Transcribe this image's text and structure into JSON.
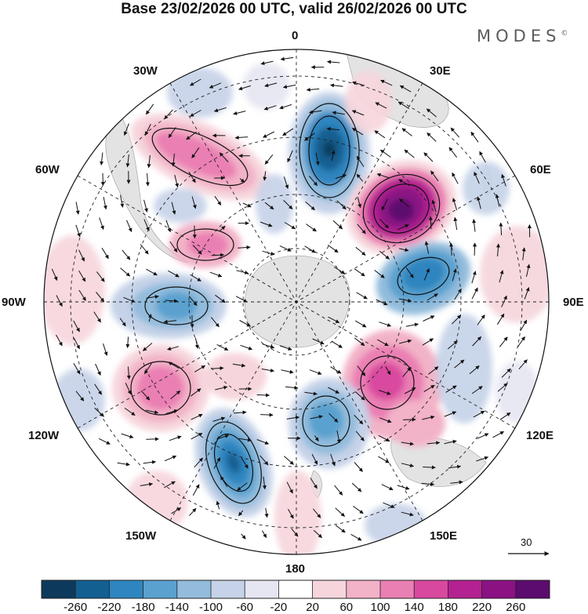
{
  "header": {
    "title": "Base 23/02/2026 00 UTC, valid 26/02/2026 00 UTC",
    "brand": "MODES",
    "brand_mark": "©"
  },
  "map": {
    "projection": "south-polar-stereographic",
    "longitude_labels": {
      "lon_0": "0",
      "lon_30e": "30E",
      "lon_60e": "60E",
      "lon_90e": "90E",
      "lon_120e": "120E",
      "lon_150e": "150E",
      "lon_180": "180",
      "lon_150w": "150W",
      "lon_120w": "120W",
      "lon_90w": "90W",
      "lon_60w": "60W",
      "lon_30w": "30W"
    },
    "reference_vector": {
      "value": "30"
    }
  },
  "colorbar": {
    "labels": [
      "-260",
      "-220",
      "-180",
      "-140",
      "-100",
      "-60",
      "-20",
      "20",
      "60",
      "100",
      "140",
      "180",
      "220",
      "260"
    ],
    "colors": [
      "#0d3a5c",
      "#135f91",
      "#2e85bf",
      "#5aa1cf",
      "#93bcdc",
      "#c5d2e8",
      "#e6e6f2",
      "#ffffff",
      "#f6d5dc",
      "#f2b2c7",
      "#ea7fb3",
      "#d9489f",
      "#b42190",
      "#8a1283",
      "#5c0b6e"
    ]
  },
  "anomalies": [
    {
      "name": "anomaly-neg-0e",
      "sign": "negative",
      "magnitude": 220
    },
    {
      "name": "anomaly-pos-45e",
      "sign": "positive",
      "magnitude": 260
    },
    {
      "name": "anomaly-neg-80e",
      "sign": "negative",
      "magnitude": 180
    },
    {
      "name": "anomaly-pos-125e",
      "sign": "positive",
      "magnitude": 180
    },
    {
      "name": "anomaly-neg-160e",
      "sign": "negative",
      "magnitude": 140
    },
    {
      "name": "anomaly-neg-155w",
      "sign": "negative",
      "magnitude": 220
    },
    {
      "name": "anomaly-pos-125w",
      "sign": "positive",
      "magnitude": 140
    },
    {
      "name": "anomaly-neg-95w",
      "sign": "negative",
      "magnitude": 140
    },
    {
      "name": "anomaly-pos-60w",
      "sign": "positive",
      "magnitude": 100
    },
    {
      "name": "anomaly-pos-40w",
      "sign": "positive",
      "magnitude": 140
    }
  ]
}
